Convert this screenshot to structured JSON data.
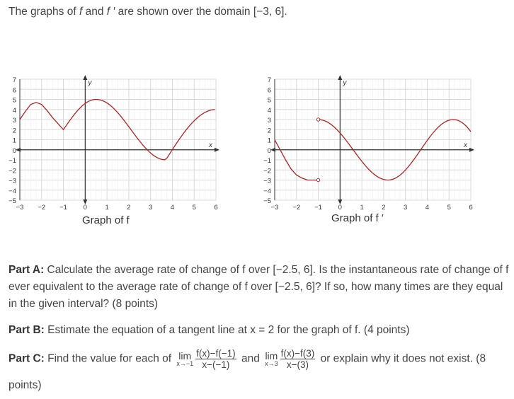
{
  "intro": {
    "text_before_f": "The graphs of ",
    "f": "f",
    "and": " and ",
    "fprime": "f ′",
    "text_after": " are shown over the domain [−3, 6]."
  },
  "graphs": [
    {
      "caption": "Graph of f",
      "x_label": "x",
      "y_label": "y",
      "x_ticks": [
        "−3",
        "−2",
        "−1",
        "0",
        "1",
        "2",
        "3",
        "4",
        "5",
        "6"
      ],
      "y_ticks": [
        "−5",
        "−4",
        "−3",
        "−2",
        "−1",
        "0",
        "1",
        "2",
        "3",
        "4",
        "5",
        "6",
        "7"
      ],
      "curve_color": "#b22222"
    },
    {
      "caption": "Graph of f ′",
      "x_label": "x",
      "y_label": "y",
      "x_ticks": [
        "−3",
        "−2",
        "−1",
        "0",
        "1",
        "2",
        "3",
        "4",
        "5",
        "6"
      ],
      "y_ticks": [
        "−5",
        "−4",
        "−3",
        "−2",
        "−1",
        "0",
        "1",
        "2",
        "3",
        "4",
        "5",
        "6",
        "7"
      ],
      "curve_color": "#b22222"
    }
  ],
  "parts": {
    "a": {
      "label": "Part A:",
      "text": " Calculate the average rate of change of f over [−2.5, 6]. Is the instantaneous rate of change of f ever equivalent to the average rate of change of f over [−2.5, 6]? If so, how many times are they equal in the given interval? (8 points)"
    },
    "b": {
      "label": "Part B:",
      "text": " Estimate the equation of a tangent line at x = 2 for the graph of f. (4 points)"
    },
    "c": {
      "label": "Part C:",
      "text_before": " Find the value for each of ",
      "limit1": {
        "word": "lim",
        "sub": "x→−1",
        "num": "f(x)−f(−1)",
        "den": "x−(−1)"
      },
      "and": " and ",
      "limit2": {
        "word": "lim",
        "sub": "x→3",
        "num": "f(x)−f(3)",
        "den": "x−(3)"
      },
      "text_after": " or explain why it does not exist. (8",
      "text_end": "points)"
    }
  }
}
